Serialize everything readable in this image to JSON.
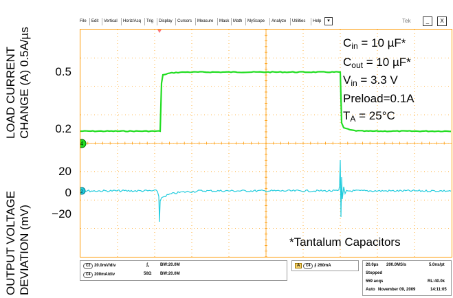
{
  "axis_titles": {
    "top": [
      "LOAD CURRENT",
      "CHANGE (A) 0.5A/µs"
    ],
    "bottom": [
      "OUTPUT VOLTAGE",
      "DEVIATION (mV)"
    ]
  },
  "top_ticks": [
    "0.5",
    "0.2"
  ],
  "bottom_ticks": [
    "20",
    "0",
    "−20"
  ],
  "menu": {
    "items": [
      "File",
      "Edit",
      "Vertical",
      "Horiz/Acq",
      "Trig",
      "Display",
      "Cursors",
      "Measure",
      "Mask",
      "Math",
      "MyScope",
      "Analyze",
      "Utilities",
      "Help"
    ],
    "dropdown": "▾",
    "brand": "Tek",
    "minimize": "_",
    "close": "X"
  },
  "annotations": {
    "cin_label": "C",
    "cin_sub": "in",
    "cin_value": " = 10 µF*",
    "cout_label": "C",
    "cout_sub": "out",
    "cout_value": " = 10 µF*",
    "vin_label": "V",
    "vin_sub": "in",
    "vin_value": " = 3.3 V",
    "preload": "Preload=0.1A",
    "ta_label": "T",
    "ta_sub": "A",
    "ta_value": " = 25°C",
    "footnote": "*Tantalum Capacitors"
  },
  "markers": {
    "ch4": "4",
    "ch2": "2"
  },
  "readouts": {
    "ch2_pill": "C2",
    "ch2_scale": "20.0mV/div",
    "ch2_bw": "BW:20.0M",
    "ch4_pill": "C4",
    "ch4_scale": "200mA/div",
    "ch4_imp": "50Ω",
    "ch4_bw": "BW:20.0M",
    "trig_a": "A",
    "trig_pill": "C4",
    "trig_slope": "⨍",
    "trig_level": "260mA",
    "timebase": "20.0µs",
    "sample_rate": "200.0MS/s",
    "per_pt": "5.0ns/pt",
    "state": "Stopped",
    "acqs": "559 acqs",
    "record_length": "RL:40.0k",
    "mode": "Auto",
    "date": "November 09, 2009",
    "time": "14:11:05"
  },
  "colors": {
    "ch4_trace": "#22dd22",
    "ch2_trace": "#22ccdd",
    "graticule": "#ff9900"
  }
}
